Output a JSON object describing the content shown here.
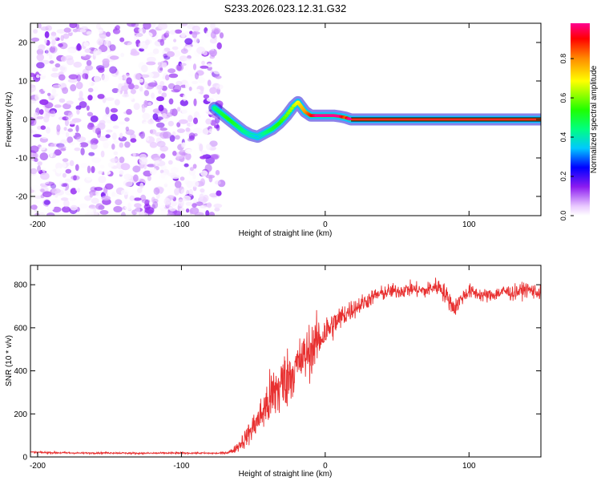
{
  "title": "S233.2026.023.12.31.G32",
  "chart_data": [
    {
      "type": "heatmap",
      "title": "S233.2026.023.12.31.G32",
      "xlabel": "Height of straight line (km)",
      "ylabel": "Frequency (Hz)",
      "xlim": [
        -205,
        150
      ],
      "ylim": [
        -25,
        25
      ],
      "xticks": [
        -200,
        -100,
        0,
        100
      ],
      "yticks": [
        -20,
        -10,
        0,
        10,
        20
      ],
      "noise_region_x": [
        -205,
        -72
      ],
      "ridge": {
        "x": [
          -77,
          -72,
          -67,
          -62,
          -57,
          -52,
          -47,
          -42,
          -37,
          -32,
          -27,
          -22,
          -19,
          -17,
          -14,
          -10,
          -6,
          -2,
          2,
          6,
          10,
          14,
          18,
          150
        ],
        "y": [
          3,
          1.5,
          0,
          -1.5,
          -3,
          -4,
          -4.5,
          -3.5,
          -2.5,
          -1,
          1,
          3.5,
          4.5,
          3.5,
          2,
          1,
          1,
          1,
          1,
          1,
          0.8,
          0.5,
          0,
          0
        ],
        "amplitude": [
          0.3,
          0.35,
          0.4,
          0.35,
          0.3,
          0.25,
          0.2,
          0.3,
          0.35,
          0.4,
          0.45,
          0.5,
          0.55,
          0.6,
          0.65,
          0.75,
          0.85,
          0.9,
          0.95,
          0.9,
          0.85,
          0.7,
          0.95,
          0.95
        ]
      },
      "colorbar": {
        "label": "Normalized spectral amplitude",
        "range": [
          0,
          0.98
        ],
        "ticks": [
          0.0,
          0.2,
          0.4,
          0.6,
          0.8
        ],
        "tick_labels": [
          "0.0",
          "0.2",
          "0.4",
          "0.6",
          "0.8"
        ]
      }
    },
    {
      "type": "line",
      "xlabel": "Height of straight line (km)",
      "ylabel": "SNR (10 * v/v)",
      "xlim": [
        -205,
        150
      ],
      "ylim": [
        0,
        890
      ],
      "xticks": [
        -200,
        -100,
        0,
        100
      ],
      "yticks": [
        0,
        200,
        400,
        600,
        800
      ],
      "color": "#e83030",
      "series": [
        {
          "name": "SNR",
          "x": [
            -205,
            -190,
            -170,
            -150,
            -130,
            -110,
            -90,
            -75,
            -68,
            -64,
            -60,
            -55,
            -50,
            -45,
            -40,
            -35,
            -30,
            -25,
            -20,
            -15,
            -10,
            -5,
            0,
            5,
            10,
            15,
            20,
            25,
            30,
            35,
            40,
            45,
            50,
            55,
            60,
            65,
            70,
            75,
            80,
            85,
            90,
            95,
            100,
            105,
            110,
            115,
            120,
            125,
            130,
            135,
            140,
            145,
            150
          ],
          "values": [
            22,
            20,
            18,
            19,
            17,
            18,
            18,
            17,
            20,
            30,
            55,
            90,
            140,
            190,
            250,
            300,
            340,
            380,
            420,
            460,
            500,
            540,
            580,
            610,
            640,
            670,
            690,
            710,
            730,
            750,
            760,
            770,
            770,
            775,
            780,
            775,
            770,
            790,
            790,
            740,
            690,
            740,
            770,
            760,
            750,
            750,
            760,
            770,
            760,
            770,
            780,
            770,
            760
          ],
          "noise": [
            6,
            6,
            5,
            5,
            5,
            5,
            5,
            5,
            8,
            15,
            40,
            60,
            80,
            110,
            160,
            200,
            200,
            170,
            150,
            160,
            160,
            140,
            110,
            90,
            80,
            70,
            60,
            55,
            50,
            45,
            45,
            45,
            45,
            45,
            45,
            45,
            45,
            55,
            55,
            60,
            55,
            45,
            45,
            40,
            40,
            40,
            40,
            45,
            45,
            45,
            45,
            45,
            45
          ]
        }
      ]
    }
  ]
}
